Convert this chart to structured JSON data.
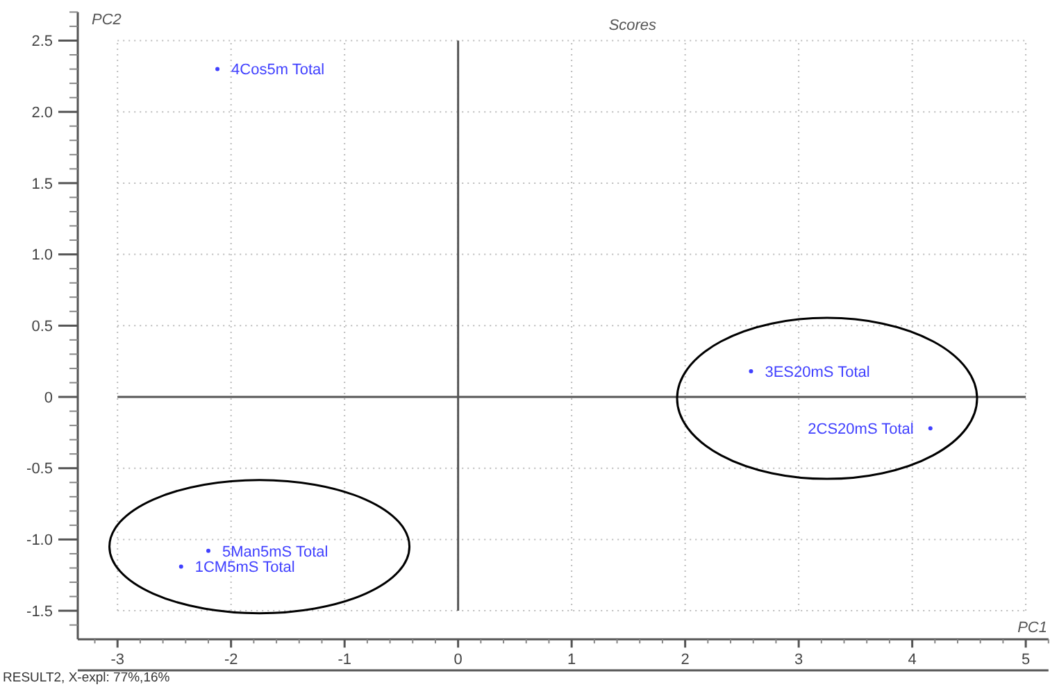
{
  "chart_data": {
    "type": "scatter",
    "title": "Scores",
    "xlabel": "PC1",
    "ylabel": "PC2",
    "xlim": [
      -3.35,
      5.2
    ],
    "ylim": [
      -1.7,
      2.7
    ],
    "xticks": [
      -3,
      -2,
      -1,
      0,
      1,
      2,
      3,
      4,
      5
    ],
    "yticks": [
      -1.5,
      {
        "value": -1,
        "label": "-1.0"
      },
      -0.5,
      0,
      0.5,
      {
        "value": 1,
        "label": "1.0"
      },
      1.5,
      {
        "value": 2,
        "label": "2.0"
      },
      2.5
    ],
    "grid": true,
    "marker": "circle",
    "series": [
      {
        "color": "#4040ff",
        "x": [
          -2.12,
          -2.2,
          -2.44,
          2.58,
          4.16
        ],
        "values": [
          2.3,
          -1.08,
          -1.19,
          0.18,
          -0.22
        ]
      }
    ],
    "annotations": [
      {
        "text": "4Cos5m Total",
        "x": -2.12,
        "y": 2.3
      },
      {
        "text": "5Man5mS Total",
        "x": -2.2,
        "y": -1.08
      },
      {
        "text": "1CM5mS Total",
        "x": -2.44,
        "y": -1.19
      },
      {
        "text": "3ES20mS Total",
        "x": 2.58,
        "y": 0.18
      },
      {
        "text": "2CS20mS Total",
        "x": 4.16,
        "y": -0.22
      },
      "RESULT2, X-expl: 77%,16%"
    ]
  }
}
